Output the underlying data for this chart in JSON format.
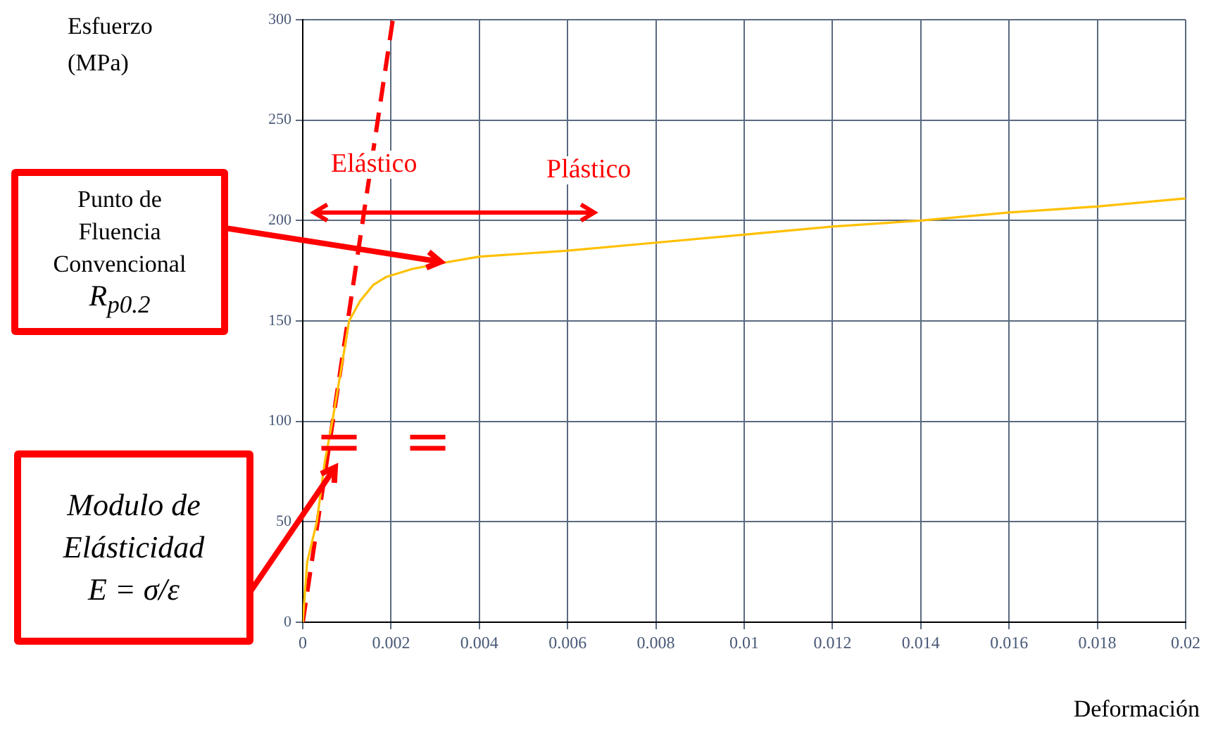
{
  "chart_data": {
    "type": "line",
    "xlabel": "Deformación",
    "ylabel": "Esfuerzo (MPa)",
    "xlim": [
      0,
      0.02
    ],
    "xticks": [
      0,
      0.002,
      0.004,
      0.006,
      0.008,
      0.01,
      0.012,
      0.014,
      0.016,
      0.018,
      0.02
    ],
    "ylim": [
      0,
      300
    ],
    "yticks": [
      0,
      50,
      100,
      150,
      200,
      250,
      300
    ],
    "grid": true,
    "marker": "none",
    "series": [
      {
        "type": "line",
        "color": "#ffc000",
        "line_style": "solid",
        "x": [
          0,
          0.0001,
          0.00032,
          0.0005,
          0.00067,
          0.0009,
          0.00105,
          0.0013,
          0.0016,
          0.0019,
          0.0025,
          0.0032,
          0.004,
          0.006,
          0.008,
          0.01,
          0.012,
          0.014,
          0.016,
          0.018,
          0.02
        ],
        "values": [
          0,
          30,
          50,
          80,
          100,
          130,
          150,
          160,
          168,
          172,
          176,
          179,
          182,
          185,
          189,
          193,
          197,
          200,
          204,
          207,
          211
        ]
      },
      {
        "type": "line",
        "color": "#ff0000",
        "line_style": "dashed",
        "x": [
          0,
          0.00204
        ],
        "values": [
          0,
          300
        ]
      }
    ],
    "annotations": [
      "Elástico",
      "Plástico",
      "Punto de Fluencia Convencional",
      "R$_{p0.2}$",
      "Modulo de Elásticidad",
      "E = σ/ε",
      "=",
      "="
    ]
  }
}
